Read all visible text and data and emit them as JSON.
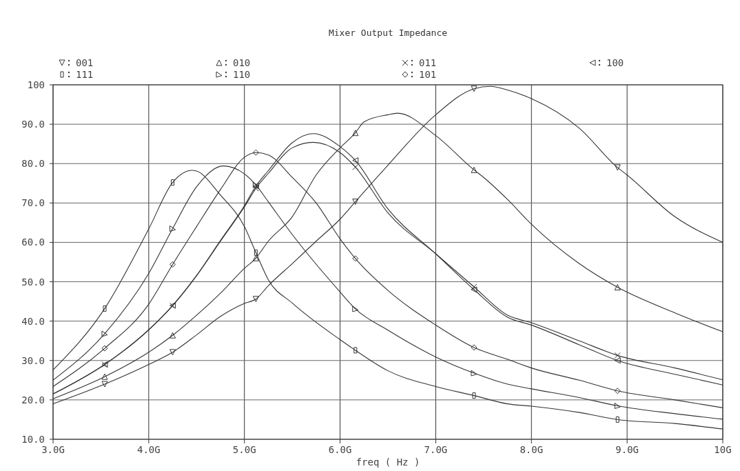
{
  "chart_data": {
    "type": "line",
    "title": "Mixer Output Impedance",
    "xlabel": "freq ( Hz )",
    "xlim": [
      3,
      10
    ],
    "xticks": [
      {
        "value": 3,
        "label": "3.0G"
      },
      {
        "value": 4,
        "label": "4.0G"
      },
      {
        "value": 5,
        "label": "5.0G"
      },
      {
        "value": 6,
        "label": "6.0G"
      },
      {
        "value": 7,
        "label": "7.0G"
      },
      {
        "value": 8,
        "label": "8.0G"
      },
      {
        "value": 9,
        "label": "9.0G"
      },
      {
        "value": 10,
        "label": "10G"
      }
    ],
    "ylim": [
      10,
      100
    ],
    "yticks": [
      {
        "value": 10,
        "label": "10.0"
      },
      {
        "value": 20,
        "label": "20.0"
      },
      {
        "value": 30,
        "label": "30.0"
      },
      {
        "value": 40,
        "label": "40.0"
      },
      {
        "value": 50,
        "label": "50.0"
      },
      {
        "value": 60,
        "label": "60.0"
      },
      {
        "value": 70,
        "label": "70.0"
      },
      {
        "value": 80,
        "label": "80.0"
      },
      {
        "value": 90,
        "label": "90.0"
      },
      100
    ],
    "grid": true,
    "legend": "top",
    "line_style": "solid",
    "series": [
      {
        "type": "line",
        "marker": "none",
        "color": "#333333",
        "x": [
          3,
          3.54,
          4,
          4.25,
          4.5,
          4.75,
          5,
          5.12,
          5.25,
          5.5,
          5.75,
          6,
          6.16,
          6.5,
          7,
          7.4,
          7.57,
          7.75,
          8,
          8.5,
          8.9,
          9,
          9.5,
          10
        ],
        "values": [
          19,
          24,
          29,
          32.1,
          36.5,
          41.2,
          44.5,
          45.6,
          49,
          54.6,
          60.3,
          65.9,
          70.3,
          79.6,
          92.4,
          99,
          99.6,
          98.7,
          96.5,
          89,
          79,
          77.1,
          66.5,
          60
        ]
      },
      {
        "type": "line",
        "marker": "none",
        "color": "#333333",
        "x": [
          3,
          3.54,
          4,
          4.25,
          4.5,
          4.75,
          5,
          5.12,
          5.25,
          5.5,
          5.75,
          6,
          6.16,
          6.25,
          6.5,
          6.6,
          7,
          7.4,
          7.5,
          7.75,
          8,
          8.5,
          8.9,
          9.5,
          10
        ],
        "values": [
          20.3,
          25.9,
          32.1,
          36.4,
          41.5,
          47.1,
          53.4,
          56,
          60.3,
          66.5,
          77.1,
          84,
          87.8,
          90.6,
          92.4,
          92.8,
          87.1,
          78.4,
          76.5,
          70.9,
          64.6,
          54.6,
          48.6,
          42.1,
          37.3
        ]
      },
      {
        "type": "line",
        "marker": "none",
        "color": "#333333",
        "x": [
          3,
          3.54,
          4,
          4.25,
          4.5,
          4.75,
          5,
          5.12,
          5.25,
          5.5,
          5.72,
          6,
          6.16,
          6.5,
          7,
          7.4,
          7.75,
          8,
          8.5,
          8.9,
          9.5,
          10
        ],
        "values": [
          21.5,
          29,
          37.8,
          43.9,
          51.5,
          60.3,
          69,
          73.7,
          77.5,
          84,
          85.4,
          82.8,
          79.1,
          67.5,
          57.1,
          48.7,
          41.5,
          39.6,
          35,
          31.3,
          28.1,
          25.1
        ]
      },
      {
        "type": "line",
        "marker": "none",
        "color": "#333333",
        "x": [
          3,
          3.54,
          4,
          4.25,
          4.5,
          4.75,
          5,
          5.12,
          5.25,
          5.5,
          5.72,
          6,
          6.16,
          6.5,
          7,
          7.4,
          7.75,
          8,
          8.5,
          8.9,
          9.5,
          10
        ],
        "values": [
          21.5,
          29,
          37.8,
          44,
          51.6,
          60.5,
          69.3,
          74.3,
          78.2,
          85.3,
          87.6,
          84.3,
          80.8,
          68.5,
          57.1,
          48,
          41,
          39,
          34,
          30,
          26.5,
          23.8
        ]
      },
      {
        "type": "line",
        "marker": "none",
        "color": "#333333",
        "x": [
          3,
          3.54,
          4,
          4.25,
          4.45,
          4.5,
          4.75,
          5,
          5.12,
          5.25,
          5.5,
          6,
          6.16,
          6.5,
          7,
          7.4,
          7.75,
          8,
          8.5,
          8.9,
          9.5,
          10
        ],
        "values": [
          27.6,
          43.2,
          63.4,
          75.2,
          78.3,
          78.1,
          72,
          64,
          57.4,
          50.5,
          44.6,
          35.3,
          32.6,
          27.4,
          23.4,
          21.1,
          19,
          18.4,
          16.8,
          15,
          14,
          12.6
        ]
      },
      {
        "type": "line",
        "marker": "none",
        "color": "#333333",
        "x": [
          3,
          3.54,
          4,
          4.25,
          4.5,
          4.78,
          5,
          5.12,
          5.25,
          5.5,
          6,
          6.16,
          6.5,
          7,
          7.4,
          7.75,
          8,
          8.5,
          8.9,
          9.5,
          10
        ],
        "values": [
          25,
          36.8,
          52.1,
          63.5,
          74.1,
          79.4,
          77.4,
          74.6,
          70.3,
          62,
          47.4,
          43.1,
          37.7,
          30.9,
          26.8,
          24,
          22.8,
          20.6,
          18.5,
          16.5,
          15.1
        ]
      },
      {
        "type": "line",
        "marker": "none",
        "color": "#333333",
        "x": [
          3,
          3.54,
          4,
          4.25,
          4.5,
          4.75,
          5,
          5.12,
          5.25,
          5.5,
          5.75,
          6,
          6.16,
          6.5,
          7,
          7.4,
          7.75,
          8,
          8.5,
          8.9,
          9.5,
          10
        ],
        "values": [
          23.4,
          33.1,
          44.3,
          54.4,
          64,
          73.4,
          81.6,
          82.8,
          82.2,
          76.5,
          70,
          60.9,
          55.9,
          47.8,
          39,
          33.3,
          30.3,
          28.1,
          25,
          22.3,
          20,
          18
        ]
      },
      {
        "type": "scatter",
        "name": "001",
        "marker": "triangle-down",
        "color": "#333333",
        "x": [
          3.54,
          4.25,
          5.12,
          6.16,
          7.4,
          8.9
        ],
        "values": [
          24,
          32.1,
          45.6,
          70.3,
          99,
          79
        ]
      },
      {
        "type": "scatter",
        "name": "010",
        "marker": "triangle",
        "color": "#333333",
        "x": [
          3.54,
          4.25,
          5.12,
          6.16,
          7.4,
          8.9
        ],
        "values": [
          25.9,
          36.4,
          56,
          87.8,
          78.4,
          48.6
        ]
      },
      {
        "type": "scatter",
        "name": "011",
        "marker": "cross",
        "color": "#333333",
        "x": [
          3.54,
          4.25,
          5.12,
          6.16,
          7.4,
          8.9
        ],
        "values": [
          29,
          43.9,
          73.7,
          79.1,
          48.7,
          31.3
        ]
      },
      {
        "type": "scatter",
        "name": "100",
        "marker": "triangle-left",
        "color": "#333333",
        "x": [
          3.54,
          4.25,
          5.12,
          6.16,
          7.4,
          8.9
        ],
        "values": [
          29,
          44,
          74.3,
          80.8,
          48,
          30
        ]
      },
      {
        "type": "scatter",
        "name": "111",
        "marker": "square",
        "color": "#333333",
        "x": [
          3.54,
          4.25,
          5.12,
          6.16,
          7.4,
          8.9
        ],
        "values": [
          43.2,
          75.2,
          57.4,
          32.6,
          21.1,
          15
        ]
      },
      {
        "type": "scatter",
        "name": "110",
        "marker": "triangle-right",
        "color": "#333333",
        "x": [
          3.54,
          4.25,
          5.12,
          6.16,
          7.4,
          8.9
        ],
        "values": [
          36.8,
          63.5,
          74.6,
          43.1,
          26.8,
          18.5
        ]
      },
      {
        "type": "scatter",
        "name": "101",
        "marker": "diamond",
        "color": "#333333",
        "x": [
          3.54,
          4.25,
          5.12,
          6.16,
          7.4,
          8.9
        ],
        "values": [
          33.1,
          54.4,
          82.8,
          55.9,
          33.3,
          22.3
        ]
      }
    ]
  }
}
